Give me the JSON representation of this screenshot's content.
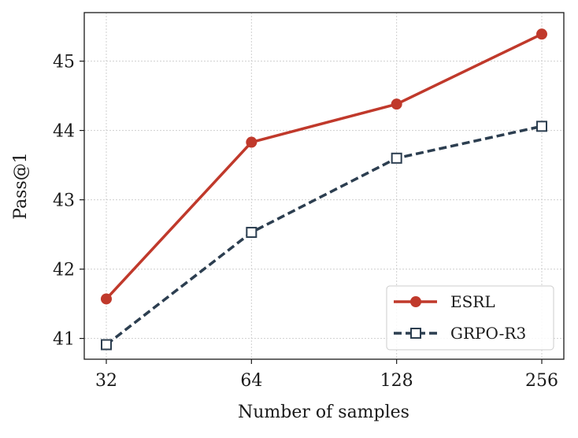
{
  "chart_data": {
    "type": "line",
    "title": "",
    "xlabel": "Number of samples",
    "ylabel": "Pass@1",
    "x": [
      32,
      64,
      128,
      256
    ],
    "x_tick_labels": [
      "32",
      "64",
      "128",
      "256"
    ],
    "x_scale": "log2",
    "ylim": [
      40.7,
      45.7
    ],
    "y_ticks": [
      41,
      42,
      43,
      44,
      45
    ],
    "y_tick_labels": [
      "41",
      "42",
      "43",
      "44",
      "45"
    ],
    "grid": true,
    "legend_position": "lower-right",
    "series": [
      {
        "name": "ESRL",
        "values": [
          41.57,
          43.83,
          44.38,
          45.39
        ],
        "color": "#c0392b",
        "line_style": "solid",
        "marker": "circle"
      },
      {
        "name": "GRPO-R3",
        "values": [
          40.91,
          42.53,
          43.6,
          44.06
        ],
        "color": "#2c3e50",
        "line_style": "dashed",
        "marker": "square"
      }
    ]
  }
}
